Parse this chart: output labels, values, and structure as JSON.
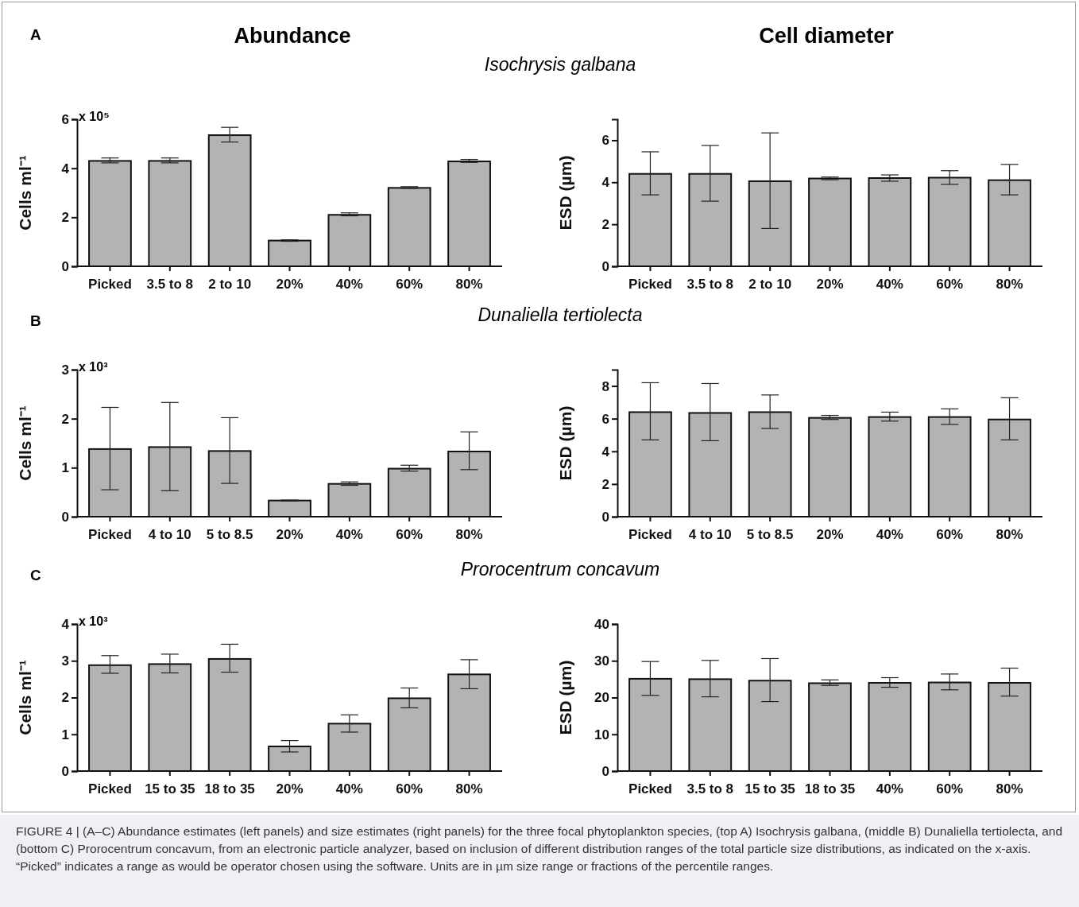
{
  "chart_data": [
    {
      "type": "bar",
      "title": "Abundance",
      "subtitle": "Isochrysis galbana",
      "ylabel": "Cells ml⁻¹",
      "annotations": [
        "A",
        "x 10⁵"
      ],
      "categories": [
        "Picked",
        "3.5 to 8",
        "2 to 10",
        "20%",
        "40%",
        "60%",
        "80%"
      ],
      "values": [
        4.3,
        4.3,
        5.35,
        1.05,
        2.1,
        3.2,
        4.28
      ],
      "errors": [
        [
          4.22,
          4.42
        ],
        [
          4.22,
          4.42
        ],
        [
          5.07,
          5.67
        ],
        [
          1.02,
          1.08
        ],
        [
          2.06,
          2.18
        ],
        [
          3.18,
          3.25
        ],
        [
          4.24,
          4.36
        ]
      ],
      "color": "#b3b3b3",
      "ylim": [
        0,
        6
      ],
      "yticks": [
        0,
        2,
        4,
        6
      ]
    },
    {
      "type": "bar",
      "title": "Cell diameter",
      "ylabel": "ESD (µm)",
      "categories": [
        "Picked",
        "3.5 to 8",
        "2 to 10",
        "20%",
        "40%",
        "60%",
        "80%"
      ],
      "values": [
        4.4,
        4.4,
        4.05,
        4.18,
        4.2,
        4.22,
        4.1
      ],
      "errors": [
        [
          3.4,
          5.45
        ],
        [
          3.1,
          5.75
        ],
        [
          1.8,
          6.35
        ],
        [
          4.12,
          4.25
        ],
        [
          4.05,
          4.35
        ],
        [
          3.9,
          4.55
        ],
        [
          3.4,
          4.85
        ]
      ],
      "color": "#b3b3b3",
      "ylim": [
        0,
        7
      ],
      "yticks": [
        0,
        2,
        4,
        6
      ]
    },
    {
      "type": "bar",
      "subtitle": "Dunaliella tertiolecta",
      "ylabel": "Cells ml⁻¹",
      "annotations": [
        "B",
        "x 10³"
      ],
      "categories": [
        "Picked",
        "4 to 10",
        "5 to 8.5",
        "20%",
        "40%",
        "60%",
        "80%"
      ],
      "values": [
        1.38,
        1.42,
        1.34,
        0.33,
        0.67,
        0.98,
        1.33
      ],
      "errors": [
        [
          0.55,
          2.23
        ],
        [
          0.53,
          2.33
        ],
        [
          0.68,
          2.02
        ],
        [
          0.32,
          0.34
        ],
        [
          0.64,
          0.71
        ],
        [
          0.93,
          1.05
        ],
        [
          0.96,
          1.73
        ]
      ],
      "color": "#b3b3b3",
      "ylim": [
        0,
        3
      ],
      "yticks": [
        0,
        1,
        2,
        3
      ]
    },
    {
      "type": "bar",
      "ylabel": "ESD (µm)",
      "categories": [
        "Picked",
        "4 to 10",
        "5 to 8.5",
        "20%",
        "40%",
        "60%",
        "80%"
      ],
      "values": [
        6.4,
        6.35,
        6.4,
        6.05,
        6.1,
        6.1,
        5.95
      ],
      "errors": [
        [
          4.7,
          8.2
        ],
        [
          4.65,
          8.15
        ],
        [
          5.4,
          7.45
        ],
        [
          5.95,
          6.2
        ],
        [
          5.85,
          6.4
        ],
        [
          5.65,
          6.6
        ],
        [
          4.7,
          7.28
        ]
      ],
      "color": "#b3b3b3",
      "ylim": [
        0,
        9
      ],
      "yticks": [
        0,
        2,
        4,
        6,
        8
      ]
    },
    {
      "type": "bar",
      "subtitle": "Prorocentrum concavum",
      "ylabel": "Cells ml⁻¹",
      "annotations": [
        "C",
        "x 10³"
      ],
      "categories": [
        "Picked",
        "15 to 35",
        "18 to 35",
        "20%",
        "40%",
        "60%",
        "80%"
      ],
      "values": [
        2.88,
        2.91,
        3.05,
        0.67,
        1.29,
        1.98,
        2.63
      ],
      "errors": [
        [
          2.66,
          3.14
        ],
        [
          2.67,
          3.18
        ],
        [
          2.69,
          3.45
        ],
        [
          0.52,
          0.83
        ],
        [
          1.06,
          1.53
        ],
        [
          1.72,
          2.26
        ],
        [
          2.24,
          3.03
        ]
      ],
      "color": "#b3b3b3",
      "ylim": [
        0,
        4
      ],
      "yticks": [
        0,
        1,
        2,
        3,
        4
      ]
    },
    {
      "type": "bar",
      "ylabel": "ESD (µm)",
      "annotations": [
        "FIGURE 4 | (A–C) Abundance estimates (left panels) and size estimates (right panels) for the three focal phytoplankton species, (top A) Isochrysis galbana, (middle B) Dunaliella tertiolecta, and (bottom C) Prorocentrum concavum, from an electronic particle analyzer, based on inclusion of different distribution ranges of the total particle size distributions, as indicated on the x-axis. “Picked” indicates a range as would be operator chosen using the software. Units are in µm size range or fractions of the percentile ranges."
      ],
      "categories": [
        "Picked",
        "3.5 to 8",
        "15 to 35",
        "18 to 35",
        "40%",
        "60%",
        "80%"
      ],
      "values": [
        25.1,
        25,
        24.6,
        23.9,
        24,
        24.1,
        24
      ],
      "errors": [
        [
          20.6,
          29.8
        ],
        [
          20.2,
          30.1
        ],
        [
          18.9,
          30.6
        ],
        [
          23.3,
          24.8
        ],
        [
          22.8,
          25.4
        ],
        [
          22.1,
          26.4
        ],
        [
          20.4,
          28
        ]
      ],
      "color": "#b3b3b3",
      "ylim": [
        0,
        40
      ],
      "yticks": [
        0,
        10,
        20,
        30,
        40
      ]
    }
  ]
}
